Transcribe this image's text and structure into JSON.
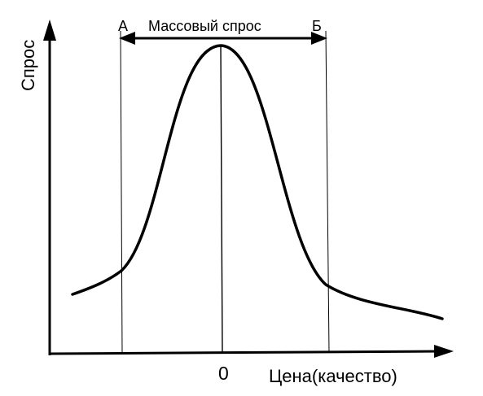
{
  "diagram": {
    "y_axis_label": "Спрос",
    "x_axis_label": "Цена(качество)",
    "origin_label": "0",
    "range_label": "Массовый спрос",
    "left_bound_label": "А",
    "right_bound_label": "Б"
  },
  "colors": {
    "ink": "#000000",
    "background": "#ffffff"
  }
}
